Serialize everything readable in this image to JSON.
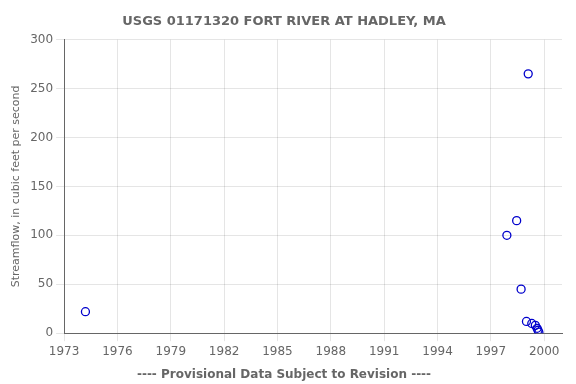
{
  "chart_data": {
    "type": "scatter",
    "title": "USGS 01171320 FORT RIVER AT HADLEY, MA",
    "ylabel": "Streamflow, in cubic feet per second",
    "annotations": [
      "---- Provisional Data Subject to Revision ----"
    ],
    "x": [
      1974.2,
      1997.9,
      1998.45,
      1999.1,
      1998.7,
      1999.0,
      1999.3,
      1999.5,
      1999.6,
      1999.65,
      1999.7
    ],
    "values": [
      22,
      100,
      115,
      265,
      45,
      12,
      10,
      8,
      5,
      3,
      1
    ],
    "color": "#0000cc",
    "xlim": [
      1973,
      2001
    ],
    "ylim": [
      0,
      300
    ],
    "xticks": [
      1973,
      1976,
      1979,
      1982,
      1985,
      1988,
      1991,
      1994,
      1997,
      2000
    ],
    "yticks": [
      0,
      50,
      100,
      150,
      200,
      250,
      300
    ],
    "grid": true
  }
}
